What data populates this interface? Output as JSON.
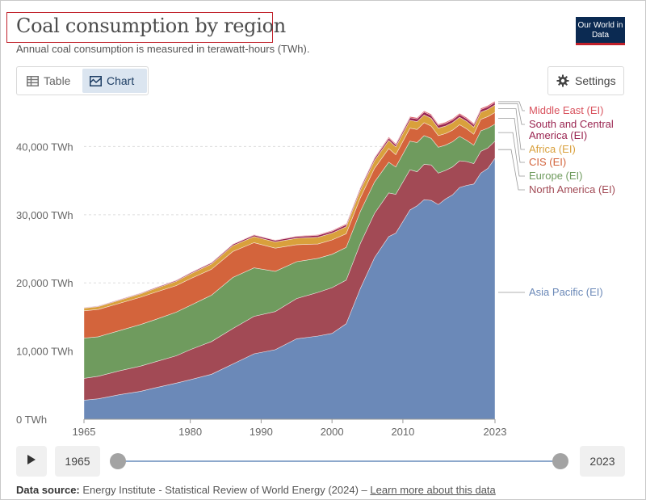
{
  "header": {
    "title": "Coal consumption by region",
    "subtitle": "Annual coal consumption is measured in terawatt-hours (TWh).",
    "logo_text": "Our World in Data"
  },
  "tabs": {
    "table_label": "Table",
    "chart_label": "Chart",
    "settings_label": "Settings"
  },
  "timeline": {
    "start_year": "1965",
    "end_year": "2023"
  },
  "footer": {
    "source_label": "Data source:",
    "source_text": "Energy Institute - Statistical Review of World Energy (2024)",
    "separator": "–",
    "link_text": "Learn more about this data"
  },
  "chart_data": {
    "type": "area",
    "stacked": true,
    "x": [
      1965,
      1967,
      1970,
      1973,
      1975,
      1978,
      1980,
      1983,
      1986,
      1989,
      1992,
      1995,
      1998,
      2000,
      2002,
      2004,
      2006,
      2008,
      2009,
      2011,
      2012,
      2013,
      2014,
      2015,
      2016,
      2017,
      2018,
      2019,
      2020,
      2021,
      2022,
      2023
    ],
    "x_ticks": [
      "1965",
      "1980",
      "1990",
      "2000",
      "2010",
      "2023"
    ],
    "x_tick_values": [
      1965,
      1980,
      1990,
      2000,
      2010,
      2023
    ],
    "y_ticks": [
      "0 TWh",
      "10,000 TWh",
      "20,000 TWh",
      "30,000 TWh",
      "40,000 TWh"
    ],
    "y_tick_values": [
      0,
      10000,
      20000,
      30000,
      40000
    ],
    "ylim": [
      0,
      45500
    ],
    "series": [
      {
        "name": "Asia Pacific (EI)",
        "color": "#6b89b8",
        "values": [
          2800,
          3000,
          3600,
          4100,
          4600,
          5300,
          5800,
          6600,
          8100,
          9600,
          10200,
          11800,
          12200,
          12600,
          14000,
          19200,
          23700,
          26800,
          27300,
          30700,
          31300,
          32200,
          32100,
          31500,
          32300,
          32900,
          34000,
          34300,
          34500,
          36100,
          36800,
          38300
        ]
      },
      {
        "name": "North America (EI)",
        "color": "#a24a55",
        "values": [
          3200,
          3300,
          3500,
          3700,
          3800,
          4000,
          4400,
          4800,
          5200,
          5500,
          5600,
          5900,
          6400,
          6700,
          6400,
          6600,
          6500,
          6400,
          5700,
          5900,
          5000,
          5200,
          5200,
          4600,
          4200,
          4100,
          3900,
          3500,
          3000,
          3200,
          3000,
          2500
        ]
      },
      {
        "name": "Europe (EI)",
        "color": "#6f9b5e",
        "values": [
          5900,
          5800,
          5900,
          6100,
          6200,
          6400,
          6500,
          6800,
          7500,
          7100,
          5900,
          5400,
          5000,
          4900,
          4800,
          4700,
          4600,
          4500,
          4000,
          4200,
          4300,
          4200,
          3900,
          3800,
          3700,
          3700,
          3600,
          3100,
          2700,
          3000,
          2900,
          2500
        ]
      },
      {
        "name": "CIS (EI)",
        "color": "#d3643c",
        "values": [
          4000,
          4000,
          4000,
          4000,
          4000,
          3900,
          3900,
          3800,
          3800,
          3700,
          3400,
          2500,
          2100,
          2100,
          2000,
          2000,
          2000,
          2000,
          1800,
          1900,
          1900,
          1900,
          1800,
          1700,
          1700,
          1700,
          1700,
          1700,
          1600,
          1700,
          1700,
          1700
        ]
      },
      {
        "name": "Africa (EI)",
        "color": "#d9a03c",
        "values": [
          400,
          420,
          450,
          500,
          550,
          620,
          700,
          780,
          850,
          900,
          900,
          950,
          1000,
          1000,
          1050,
          1100,
          1150,
          1200,
          1150,
          1150,
          1150,
          1150,
          1150,
          1100,
          1100,
          1100,
          1100,
          1100,
          1050,
          1050,
          1050,
          1100
        ]
      },
      {
        "name": "South and Central America (EI)",
        "color": "#9a2450",
        "values": [
          80,
          90,
          100,
          110,
          120,
          140,
          160,
          180,
          200,
          220,
          230,
          250,
          280,
          290,
          300,
          320,
          330,
          350,
          330,
          380,
          400,
          420,
          420,
          410,
          400,
          400,
          390,
          380,
          360,
          380,
          380,
          380
        ]
      },
      {
        "name": "Middle East (EI)",
        "color": "#d9535e",
        "values": [
          30,
          30,
          30,
          30,
          30,
          40,
          40,
          50,
          60,
          70,
          80,
          90,
          100,
          110,
          120,
          130,
          150,
          160,
          160,
          170,
          170,
          170,
          180,
          180,
          180,
          180,
          180,
          180,
          180,
          180,
          190,
          190
        ]
      }
    ]
  }
}
